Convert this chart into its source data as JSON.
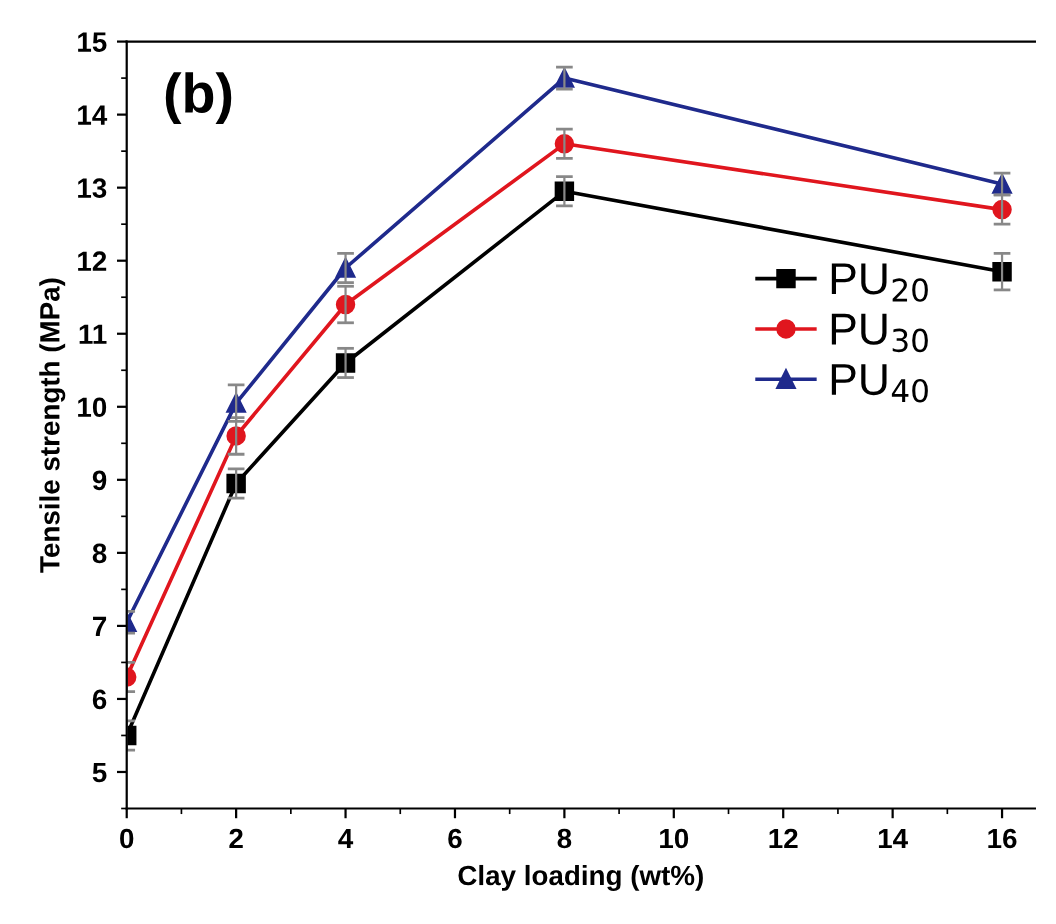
{
  "chart_data": {
    "type": "line",
    "xlabel": "Clay loading (wt%)",
    "ylabel": "Tensile strength (MPa)",
    "annotations": [
      "(b)"
    ],
    "x": [
      0,
      2,
      4,
      8,
      16
    ],
    "xlim": [
      0,
      16.6
    ],
    "xticks": [
      0,
      2,
      4,
      6,
      8,
      10,
      12,
      14,
      16
    ],
    "ylim": [
      4.5,
      15
    ],
    "yticks": [
      5,
      6,
      7,
      8,
      9,
      10,
      11,
      12,
      13,
      14,
      15
    ],
    "grid": false,
    "legend": "right",
    "line_style": "solid",
    "series": [
      {
        "name": "PU$_{20}$",
        "color": "#000000",
        "marker": "square",
        "values": [
          5.5,
          8.95,
          10.6,
          12.95,
          11.85
        ],
        "errors": [
          0.2,
          0.2,
          0.2,
          0.2,
          0.25
        ]
      },
      {
        "name": "PU$_{30}$",
        "color": "#e0161e",
        "marker": "circle",
        "values": [
          6.3,
          9.6,
          11.4,
          13.6,
          12.7
        ],
        "errors": [
          0.2,
          0.25,
          0.25,
          0.2,
          0.2
        ]
      },
      {
        "name": "PU$_{40}$",
        "color": "#1f2a8c",
        "marker": "triangle",
        "values": [
          7.05,
          10.05,
          11.9,
          14.5,
          13.05
        ],
        "errors": [
          0.15,
          0.25,
          0.2,
          0.15,
          0.15
        ]
      }
    ]
  }
}
